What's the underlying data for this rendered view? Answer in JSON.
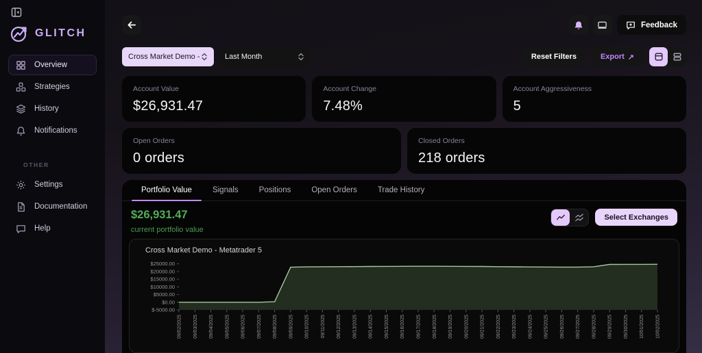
{
  "sidebar": {
    "logo": "GLITCH",
    "items": [
      {
        "label": "Overview",
        "icon": "grid-icon",
        "active": true
      },
      {
        "label": "Strategies",
        "icon": "boxes-icon",
        "active": false
      },
      {
        "label": "History",
        "icon": "layers-icon",
        "active": false
      },
      {
        "label": "Notifications",
        "icon": "bell-icon",
        "active": false
      }
    ],
    "other_label": "OTHER",
    "other_items": [
      {
        "label": "Settings",
        "icon": "gear-icon"
      },
      {
        "label": "Documentation",
        "icon": "document-icon"
      },
      {
        "label": "Help",
        "icon": "chat-icon"
      }
    ]
  },
  "topbar": {
    "feedback_label": "Feedback"
  },
  "filters": {
    "account_select": "Cross Market Demo - M",
    "period_select": "Last Month",
    "reset_label": "Reset Filters",
    "export_label": "Export"
  },
  "icons": {
    "export_arrow": "↗"
  },
  "stats": [
    {
      "label": "Account Value",
      "value": "$26,931.47"
    },
    {
      "label": "Account Change",
      "value": "7.48%"
    },
    {
      "label": "Account Aggressiveness",
      "value": "5"
    },
    {
      "label": "Open Orders",
      "value": "0 orders"
    },
    {
      "label": "Closed Orders",
      "value": "218 orders"
    }
  ],
  "tabs": [
    "Portfolio Value",
    "Signals",
    "Positions",
    "Open Orders",
    "Trade History"
  ],
  "portfolio": {
    "value": "$26,931.47",
    "caption": "current portfolio value",
    "select_exchanges_label": "Select Exchanges"
  },
  "chart_data": {
    "type": "area",
    "title": "Cross Market Demo - Metatrader 5",
    "x": [
      "09/02/2025",
      "09/03/2025",
      "09/04/2025",
      "09/05/2025",
      "09/06/2025",
      "09/07/2025",
      "09/08/2025",
      "09/09/2025",
      "09/10/2025",
      "09/11/2025",
      "09/12/2025",
      "09/13/2025",
      "09/14/2025",
      "09/15/2025",
      "09/16/2025",
      "09/17/2025",
      "09/18/2025",
      "09/19/2025",
      "09/20/2025",
      "09/21/2025",
      "09/22/2025",
      "09/23/2025",
      "09/24/2025",
      "09/25/2025",
      "09/26/2025",
      "09/27/2025",
      "09/28/2025",
      "09/29/2025",
      "09/30/2025",
      "10/01/2025",
      "10/02/2025"
    ],
    "values": [
      0,
      0,
      0,
      0,
      0,
      0,
      300,
      22800,
      23000,
      23100,
      23150,
      23200,
      23250,
      23300,
      23350,
      23400,
      23400,
      23350,
      23300,
      23250,
      23150,
      23050,
      22950,
      22900,
      22850,
      22850,
      23100,
      24600,
      24650,
      24650,
      24700
    ],
    "ylabel_ticks": [
      25000,
      20000,
      15000,
      10000,
      5000,
      0,
      -5000
    ],
    "ylim": [
      -5000,
      27500
    ],
    "grid": false,
    "legend": "none",
    "line_color": "#a3c89e",
    "fill_color": "#232d20",
    "axis_text_color": "#969696"
  }
}
